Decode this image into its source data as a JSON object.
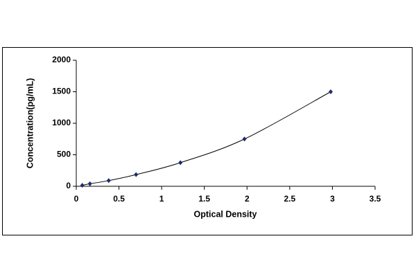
{
  "chart_data": {
    "type": "scatter",
    "xlabel": "Optical Density",
    "ylabel": "Concentration(pg/mL)",
    "x": [
      0.07,
      0.16,
      0.38,
      0.7,
      1.22,
      1.97,
      2.98
    ],
    "values": [
      15,
      40,
      90,
      185,
      375,
      750,
      1500
    ],
    "color": "#1f2a6b",
    "line_color": "#000000",
    "smooth_line": true,
    "xlim": [
      0,
      3.5
    ],
    "xticks": [
      0,
      0.5,
      1,
      1.5,
      2,
      2.5,
      3,
      3.5
    ],
    "ylim": [
      0,
      2000
    ],
    "yticks": [
      0,
      500,
      1000,
      1500,
      2000
    ],
    "grid": false
  }
}
